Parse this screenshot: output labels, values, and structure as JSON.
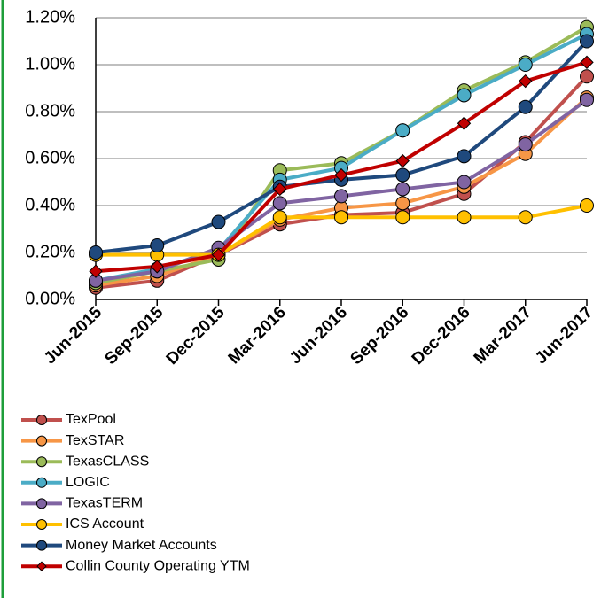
{
  "chart_data": {
    "type": "line",
    "categories": [
      "Jun-2015",
      "Sep-2015",
      "Dec-2015",
      "Mar-2016",
      "Jun-2016",
      "Sep-2016",
      "Dec-2016",
      "Mar-2017",
      "Jun-2017"
    ],
    "series": [
      {
        "name": "TexPool",
        "color": "#c0504d",
        "marker": "circle",
        "values": [
          0.05,
          0.08,
          0.19,
          0.32,
          0.36,
          0.37,
          0.45,
          0.67,
          0.95
        ]
      },
      {
        "name": "TexSTAR",
        "color": "#f79646",
        "marker": "circle",
        "values": [
          0.06,
          0.1,
          0.19,
          0.34,
          0.39,
          0.41,
          0.48,
          0.62,
          0.86
        ]
      },
      {
        "name": "TexasCLASS",
        "color": "#9bbb59",
        "marker": "circle",
        "values": [
          0.07,
          0.12,
          0.17,
          0.55,
          0.58,
          0.72,
          0.89,
          1.01,
          1.16
        ]
      },
      {
        "name": "LOGIC",
        "color": "#4bacc6",
        "marker": "circle",
        "values": [
          0.08,
          0.13,
          0.21,
          0.51,
          0.56,
          0.72,
          0.87,
          1.0,
          1.13
        ]
      },
      {
        "name": "TexasTERM",
        "color": "#8064a2",
        "marker": "circle",
        "values": [
          0.08,
          0.12,
          0.22,
          0.41,
          0.44,
          0.47,
          0.5,
          0.66,
          0.85
        ]
      },
      {
        "name": "ICS Account",
        "color": "#ffc000",
        "marker": "circle",
        "values": [
          0.19,
          0.19,
          0.19,
          0.35,
          0.35,
          0.35,
          0.35,
          0.35,
          0.4
        ]
      },
      {
        "name": "Money Market Accounts",
        "color": "#1f497d",
        "marker": "circle",
        "values": [
          0.2,
          0.23,
          0.33,
          0.48,
          0.51,
          0.53,
          0.61,
          0.82,
          1.1
        ]
      },
      {
        "name": "Collin County Operating YTM",
        "color": "#c00000",
        "marker": "diamond",
        "values": [
          0.12,
          0.14,
          0.19,
          0.47,
          0.53,
          0.59,
          0.75,
          0.93,
          1.01
        ]
      }
    ],
    "ylim": [
      0,
      1.2
    ],
    "yticks": [
      {
        "value": 0,
        "label": "0.00%"
      },
      {
        "value": 0.2,
        "label": "0.20%"
      },
      {
        "value": 0.4,
        "label": "0.40%"
      },
      {
        "value": 0.6,
        "label": "0.60%"
      },
      {
        "value": 0.8,
        "label": "0.80%"
      },
      {
        "value": 1.0,
        "label": "1.00%"
      },
      {
        "value": 1.2,
        "label": "1.20%"
      }
    ],
    "grid": true
  }
}
